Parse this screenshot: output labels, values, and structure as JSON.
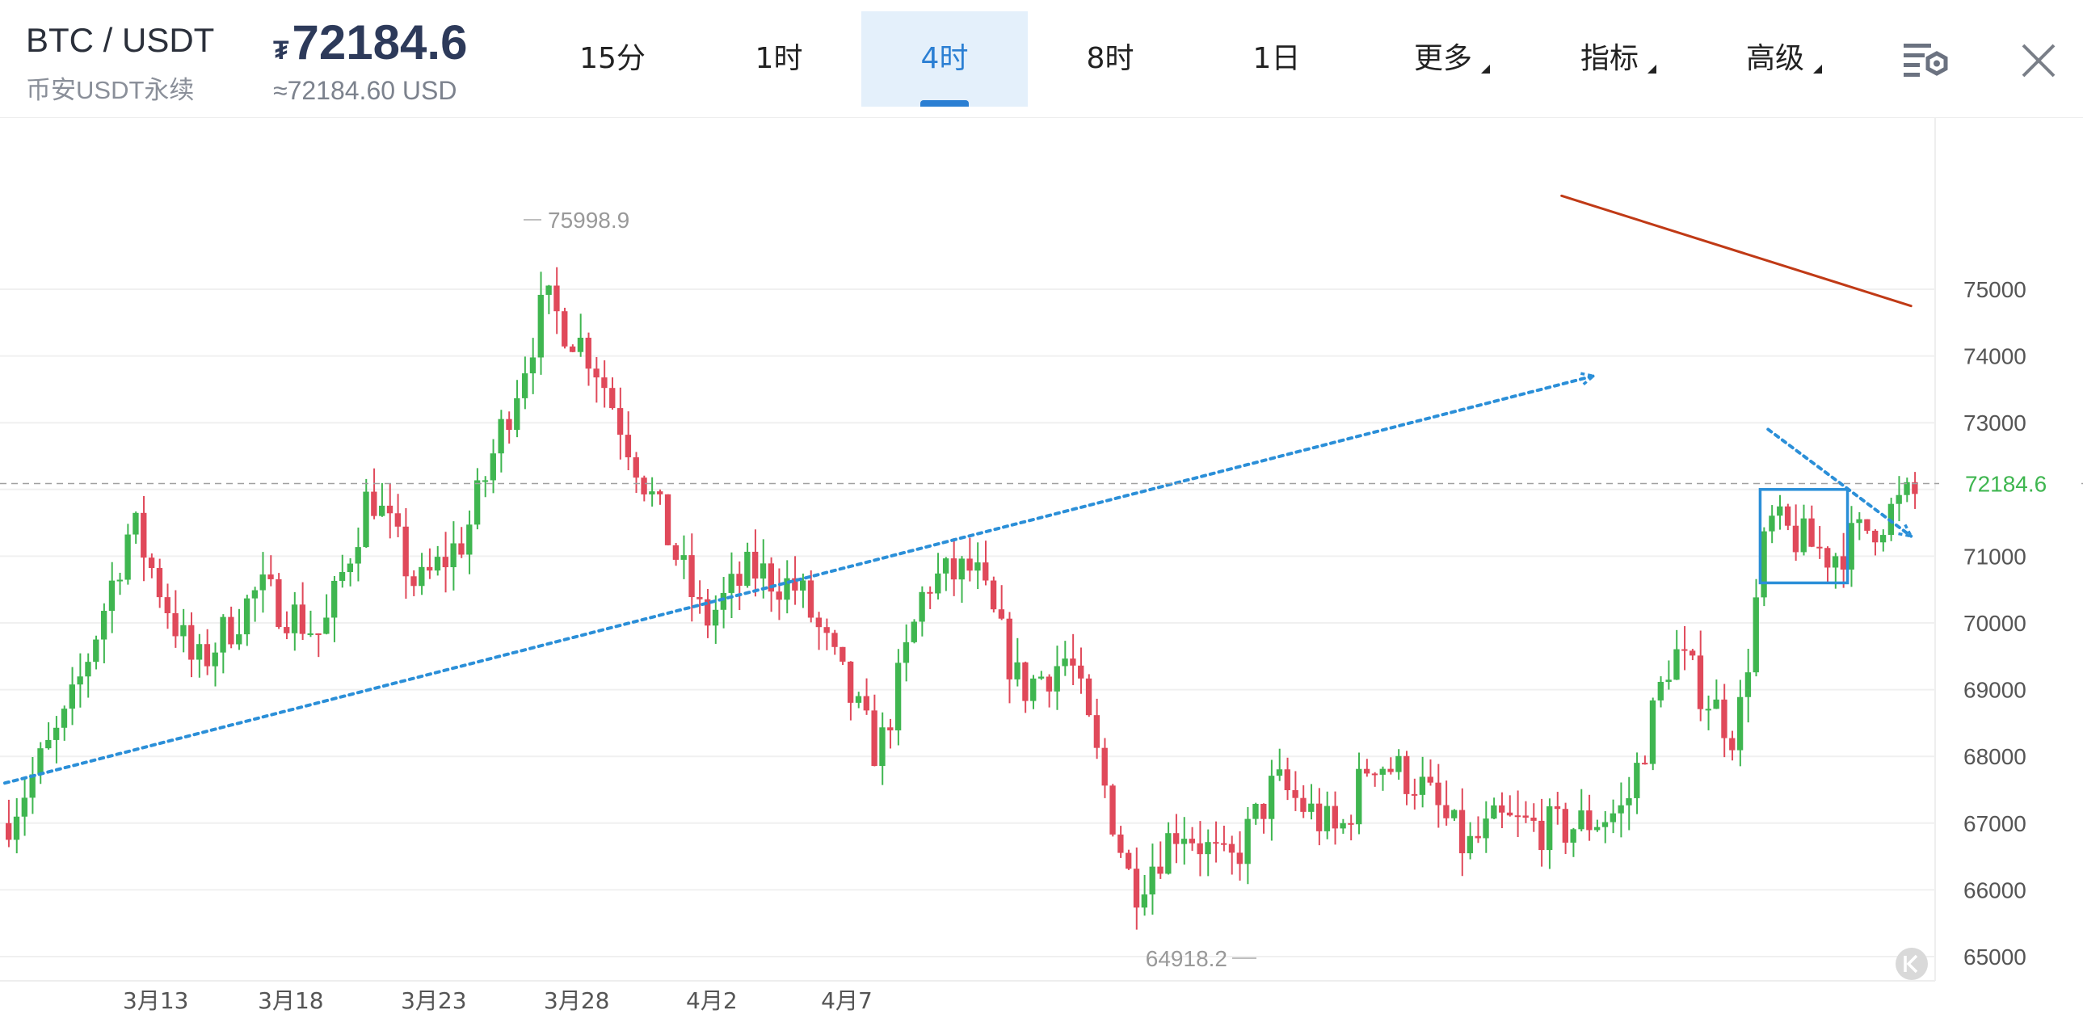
{
  "header": {
    "pair": "BTC / USDT",
    "exchange": "币安USDT永续",
    "currency_symbol": "₮",
    "price": "72184.6",
    "price_usd": "≈72184.60 USD"
  },
  "toolbar": {
    "tabs": [
      {
        "label": "15分",
        "active": false
      },
      {
        "label": "1时",
        "active": false
      },
      {
        "label": "4时",
        "active": true
      },
      {
        "label": "8时",
        "active": false
      },
      {
        "label": "1日",
        "active": false
      },
      {
        "label": "更多",
        "active": false,
        "dropdown": true
      },
      {
        "label": "指标",
        "active": false,
        "dropdown": true
      },
      {
        "label": "高级",
        "active": false,
        "dropdown": true
      }
    ],
    "settings_icon": "chart-settings-icon",
    "close_icon": "close-icon"
  },
  "chart_data": {
    "type": "candlestick",
    "y_ticks": [
      "75000",
      "74000",
      "73000",
      "72000",
      "71000",
      "70000",
      "69000",
      "68000",
      "67000",
      "66000",
      "65000"
    ],
    "x_ticks": [
      "3月13",
      "3月18",
      "3月23",
      "3月28",
      "4月2",
      "4月7"
    ],
    "current_price": "72184.6",
    "high_label": "75998.9",
    "low_label": "64918.2",
    "colors": {
      "up": "#3fb650",
      "down": "#e0495a",
      "trend_blue": "#2b8fd8",
      "trend_red": "#c03a16",
      "current_line": "#a0a0a0",
      "current_label": "#3fb650"
    },
    "keyframes": [
      [
        0,
        67000
      ],
      [
        8,
        68600
      ],
      [
        16,
        71500
      ],
      [
        24,
        69300
      ],
      [
        32,
        70500
      ],
      [
        40,
        69800
      ],
      [
        46,
        72000
      ],
      [
        52,
        70500
      ],
      [
        58,
        71300
      ],
      [
        68,
        74800
      ],
      [
        74,
        74000
      ],
      [
        80,
        72300
      ],
      [
        88,
        70000
      ],
      [
        94,
        70800
      ],
      [
        100,
        70500
      ],
      [
        110,
        68000
      ],
      [
        116,
        70600
      ],
      [
        122,
        70800
      ],
      [
        128,
        69000
      ],
      [
        134,
        69500
      ],
      [
        142,
        66000
      ],
      [
        148,
        67000
      ],
      [
        154,
        66300
      ],
      [
        160,
        67600
      ],
      [
        168,
        66800
      ],
      [
        172,
        68000
      ],
      [
        178,
        67600
      ],
      [
        184,
        66600
      ],
      [
        188,
        67000
      ],
      [
        196,
        66900
      ],
      [
        204,
        67200
      ],
      [
        210,
        69600
      ],
      [
        218,
        68300
      ],
      [
        222,
        71500
      ],
      [
        230,
        71000
      ],
      [
        240,
        71900
      ]
    ],
    "annotations": [
      {
        "type": "trendline",
        "style": "dotted",
        "arrow": true,
        "color": "#2b8fd8",
        "from": [
          0,
          67600
        ],
        "to": [
          200,
          73700
        ]
      },
      {
        "type": "trendline",
        "style": "solid",
        "color": "#c03a16",
        "from": [
          196,
          76400
        ],
        "to": [
          240,
          74750
        ]
      },
      {
        "type": "trendline",
        "style": "dotted",
        "arrow": true,
        "color": "#2b8fd8",
        "from": [
          222,
          72900
        ],
        "to": [
          240,
          71300
        ]
      },
      {
        "type": "rectangle",
        "color": "#2b8fd8",
        "from": [
          221,
          72000
        ],
        "to": [
          232,
          70600
        ]
      }
    ]
  }
}
